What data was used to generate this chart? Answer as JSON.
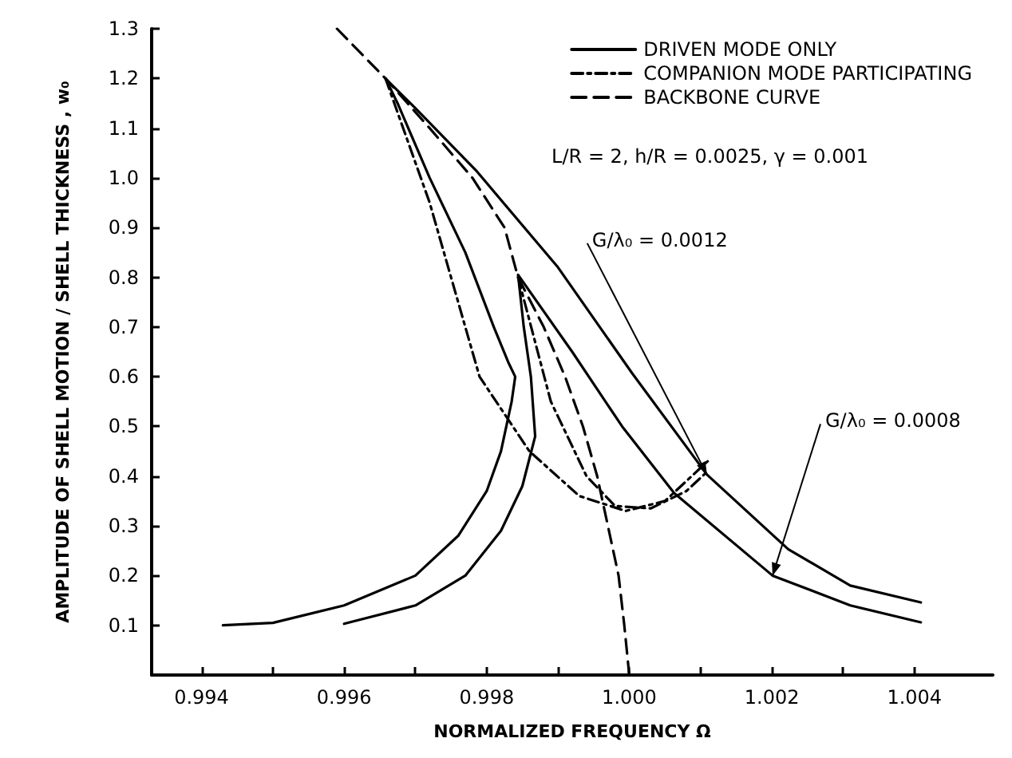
{
  "chart_data": {
    "type": "line",
    "xlabel": "NORMALIZED FREQUENCY Ω",
    "ylabel": "AMPLITUDE OF SHELL MOTION / SHELL THICKNESS , w₀",
    "xlim": [
      0.9933,
      1.0051
    ],
    "xticks": [
      0.994,
      {
        "value": 0.995,
        "label": null
      },
      0.996,
      {
        "value": 0.997,
        "label": null
      },
      0.998,
      {
        "value": 0.999,
        "label": null
      },
      {
        "value": 1.0,
        "label": "1.000"
      },
      {
        "value": 1.001,
        "label": null
      },
      1.002,
      {
        "value": 1.003,
        "label": null
      },
      1.004
    ],
    "ylim": [
      0,
      1.3
    ],
    "yticks": [
      0.1,
      0.2,
      0.3,
      0.4,
      0.5,
      0.6,
      0.7,
      0.8,
      0.9,
      {
        "value": 1.0,
        "label": "1.0"
      },
      1.1,
      1.2,
      1.3
    ],
    "grid": false,
    "legend": "top right",
    "marker": "none",
    "series": [
      {
        "name": "DRIVEN MODE ONLY",
        "color": "#000000",
        "line_style": "solid",
        "x": [
          0.9943,
          0.995,
          0.996,
          0.997,
          0.9976,
          0.998,
          0.9982,
          0.99835,
          0.9984,
          0.9983,
          0.9981,
          0.9977,
          0.9972,
          0.99675,
          0.99658,
          0.997,
          0.99785,
          0.999,
          1.00004,
          1.00109,
          1.00223,
          1.0031,
          1.00409,
          null,
          0.996,
          0.997,
          0.9977,
          0.9982,
          0.9985,
          0.99868,
          0.99862,
          0.99852,
          0.99844,
          0.9992,
          0.9999,
          1.00063,
          1.00201,
          1.0031,
          1.00409
        ],
        "values": [
          0.1,
          0.105,
          0.14,
          0.2,
          0.28,
          0.37,
          0.45,
          0.55,
          0.6,
          0.63,
          0.7,
          0.85,
          1.0,
          1.15,
          1.2,
          1.14,
          1.015,
          0.82,
          0.607,
          0.403,
          0.253,
          0.18,
          0.146,
          null,
          0.103,
          0.14,
          0.2,
          0.29,
          0.38,
          0.48,
          0.6,
          0.7,
          0.805,
          0.65,
          0.5,
          0.366,
          0.2,
          0.14,
          0.106
        ]
      },
      {
        "name": "COMPANION MODE PARTICIPATING",
        "color": "#000000",
        "line_style": "dotted",
        "x": [
          0.99658,
          0.9972,
          0.9979,
          0.9986,
          0.9993,
          0.99995,
          1.0005,
          1.0011,
          null,
          0.99844,
          0.9989,
          0.9994,
          0.9998,
          1.0003,
          1.0008,
          1.0011
        ],
        "values": [
          1.2,
          0.95,
          0.6,
          0.45,
          0.36,
          0.33,
          0.35,
          0.43,
          null,
          0.8,
          0.55,
          0.4,
          0.34,
          0.335,
          0.37,
          0.41
        ]
      },
      {
        "name": "BACKBONE CURVE",
        "color": "#000000",
        "line_style": "dashed",
        "x": [
          0.9959,
          0.99658,
          0.9972,
          0.9978,
          0.99825,
          0.99844,
          0.9988,
          0.9991,
          0.99935,
          0.99955,
          0.9997,
          0.99985,
          0.99993,
          1.0
        ],
        "values": [
          1.3,
          1.2,
          1.1,
          1.0,
          0.9,
          0.8,
          0.7,
          0.6,
          0.5,
          0.4,
          0.3,
          0.2,
          0.1,
          0.0
        ]
      }
    ],
    "annotations": [
      "L/R = 2, h/R = 0.0025, γ = 0.001",
      {
        "text": "G/λ₀ = 0.0012",
        "x": 1.00109,
        "y": 0.403
      },
      {
        "text": "G/λ₀ = 0.0008",
        "x": 1.00201,
        "y": 0.2
      }
    ]
  }
}
